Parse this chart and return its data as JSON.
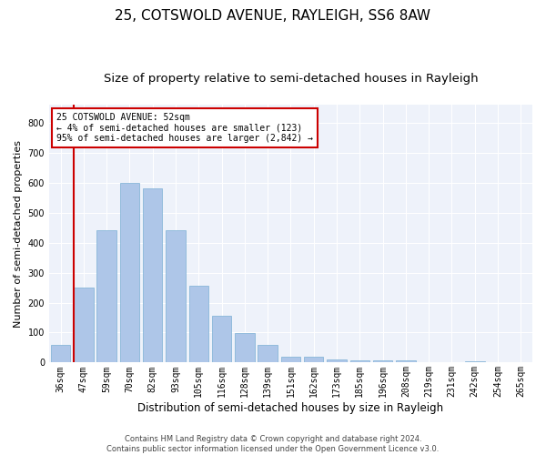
{
  "title": "25, COTSWOLD AVENUE, RAYLEIGH, SS6 8AW",
  "subtitle": "Size of property relative to semi-detached houses in Rayleigh",
  "xlabel": "Distribution of semi-detached houses by size in Rayleigh",
  "ylabel": "Number of semi-detached properties",
  "categories": [
    "36sqm",
    "47sqm",
    "59sqm",
    "70sqm",
    "82sqm",
    "93sqm",
    "105sqm",
    "116sqm",
    "128sqm",
    "139sqm",
    "151sqm",
    "162sqm",
    "173sqm",
    "185sqm",
    "196sqm",
    "208sqm",
    "219sqm",
    "231sqm",
    "242sqm",
    "254sqm",
    "265sqm"
  ],
  "values": [
    60,
    250,
    440,
    600,
    580,
    440,
    255,
    155,
    97,
    60,
    20,
    20,
    10,
    8,
    8,
    6,
    0,
    0,
    5,
    0,
    0
  ],
  "bar_color": "#aec6e8",
  "bar_edgecolor": "#7aafd4",
  "redline_color": "#cc0000",
  "annotation_text": "25 COTSWOLD AVENUE: 52sqm\n← 4% of semi-detached houses are smaller (123)\n95% of semi-detached houses are larger (2,842) →",
  "annotation_box_color": "#ffffff",
  "annotation_box_edgecolor": "#cc0000",
  "ylim": [
    0,
    860
  ],
  "yticks": [
    0,
    100,
    200,
    300,
    400,
    500,
    600,
    700,
    800
  ],
  "background_color": "#eef2fa",
  "footer_line1": "Contains HM Land Registry data © Crown copyright and database right 2024.",
  "footer_line2": "Contains public sector information licensed under the Open Government Licence v3.0.",
  "title_fontsize": 11,
  "subtitle_fontsize": 9.5,
  "ylabel_fontsize": 8,
  "xlabel_fontsize": 8.5,
  "tick_fontsize": 7,
  "annotation_fontsize": 7,
  "footer_fontsize": 6
}
